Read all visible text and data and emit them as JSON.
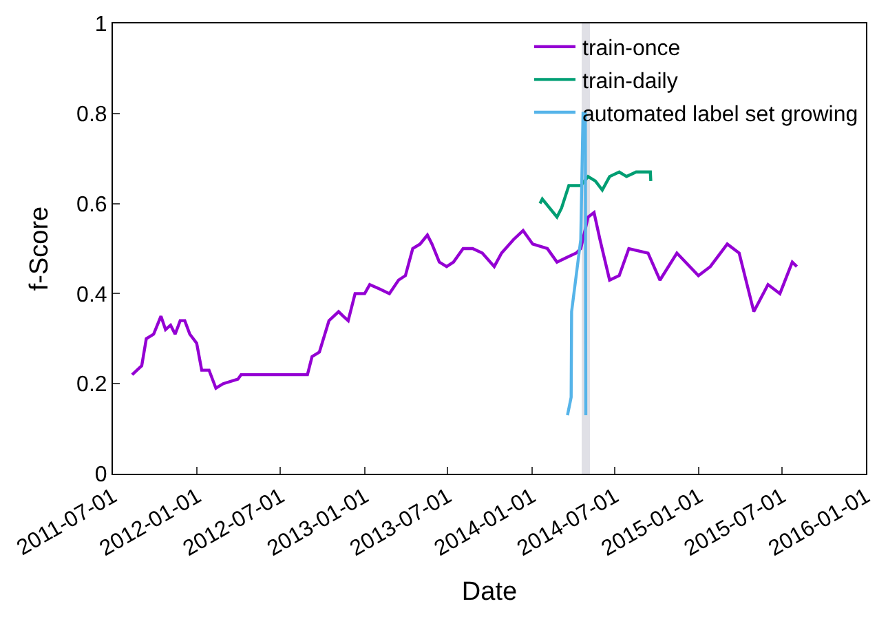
{
  "chart_data": {
    "type": "line",
    "xlabel": "Date",
    "ylabel": "f-Score",
    "xlim": [
      "2011-07-01",
      "2016-01-01"
    ],
    "xticks": [
      "2011-07-01",
      "2012-01-01",
      "2012-07-01",
      "2013-01-01",
      "2013-07-01",
      "2014-01-01",
      "2014-07-01",
      "2015-01-01",
      "2015-07-01",
      "2016-01-01"
    ],
    "ylim": [
      0,
      1
    ],
    "yticks": [
      0,
      0.2,
      0.4,
      0.6,
      0.8,
      1
    ],
    "grid": false,
    "legend": "top right",
    "marker": "none",
    "line_style": "solid",
    "bands": [
      {
        "axis": "x",
        "from": "2014-04-20",
        "to": "2014-05-08",
        "color": "#e0e0e6"
      }
    ],
    "series": [
      {
        "name": "train-once",
        "color": "#9400d3",
        "x": [
          "2011-08-12",
          "2011-09-02",
          "2011-09-12",
          "2011-09-28",
          "2011-10-14",
          "2011-10-24",
          "2011-11-04",
          "2011-11-14",
          "2011-11-25",
          "2011-12-05",
          "2011-12-16",
          "2011-12-31",
          "2012-01-11",
          "2012-01-27",
          "2012-02-11",
          "2012-02-27",
          "2012-03-30",
          "2012-04-06",
          "2012-08-29",
          "2012-09-08",
          "2012-09-24",
          "2012-10-15",
          "2012-11-05",
          "2012-11-15",
          "2012-11-26",
          "2012-12-11",
          "2013-01-01",
          "2013-01-12",
          "2013-02-03",
          "2013-02-24",
          "2013-03-16",
          "2013-03-31",
          "2013-04-16",
          "2013-05-02",
          "2013-05-18",
          "2013-05-28",
          "2013-06-13",
          "2013-06-29",
          "2013-07-14",
          "2013-08-04",
          "2013-08-25",
          "2013-09-15",
          "2013-10-11",
          "2013-10-27",
          "2013-11-22",
          "2013-12-13",
          "2014-01-03",
          "2014-02-04",
          "2014-02-25",
          "2014-03-18",
          "2014-04-08",
          "2014-04-18",
          "2014-05-04",
          "2014-05-17",
          "2014-05-30",
          "2014-06-20",
          "2014-07-11",
          "2014-08-01",
          "2014-09-12",
          "2014-10-08",
          "2014-11-14",
          "2014-12-31",
          "2015-01-26",
          "2015-03-04",
          "2015-03-30",
          "2015-05-01",
          "2015-06-01",
          "2015-06-27",
          "2015-07-24",
          "2015-08-03"
        ],
        "values": [
          0.22,
          0.24,
          0.3,
          0.31,
          0.35,
          0.32,
          0.33,
          0.31,
          0.34,
          0.34,
          0.31,
          0.29,
          0.23,
          0.23,
          0.19,
          0.2,
          0.21,
          0.22,
          0.22,
          0.26,
          0.27,
          0.34,
          0.36,
          0.35,
          0.34,
          0.4,
          0.4,
          0.42,
          0.41,
          0.4,
          0.43,
          0.44,
          0.5,
          0.51,
          0.53,
          0.51,
          0.47,
          0.46,
          0.47,
          0.5,
          0.5,
          0.49,
          0.46,
          0.49,
          0.52,
          0.54,
          0.51,
          0.5,
          0.47,
          0.48,
          0.49,
          0.5,
          0.57,
          0.58,
          0.52,
          0.43,
          0.44,
          0.5,
          0.49,
          0.43,
          0.49,
          0.44,
          0.46,
          0.51,
          0.49,
          0.36,
          0.42,
          0.4,
          0.47,
          0.46
        ]
      },
      {
        "name": "train-daily",
        "color": "#009e73",
        "x": [
          "2014-01-19",
          "2014-01-24",
          "2014-02-25",
          "2014-03-07",
          "2014-03-23",
          "2014-04-18",
          "2014-05-04",
          "2014-05-20",
          "2014-06-04",
          "2014-06-20",
          "2014-07-11",
          "2014-07-27",
          "2014-08-17",
          "2014-09-17",
          "2014-09-18"
        ],
        "values": [
          0.6,
          0.61,
          0.57,
          0.59,
          0.64,
          0.64,
          0.66,
          0.65,
          0.63,
          0.66,
          0.67,
          0.66,
          0.67,
          0.67,
          0.65
        ]
      },
      {
        "name": "automated label set growing",
        "color": "#56b4e9",
        "x": [
          "2014-03-20",
          "2014-03-28",
          "2014-03-29",
          "2014-04-18",
          "2014-04-23",
          "2014-04-28",
          "2014-04-29"
        ],
        "values": [
          0.13,
          0.17,
          0.36,
          0.52,
          0.8,
          0.8,
          0.13
        ]
      }
    ]
  }
}
